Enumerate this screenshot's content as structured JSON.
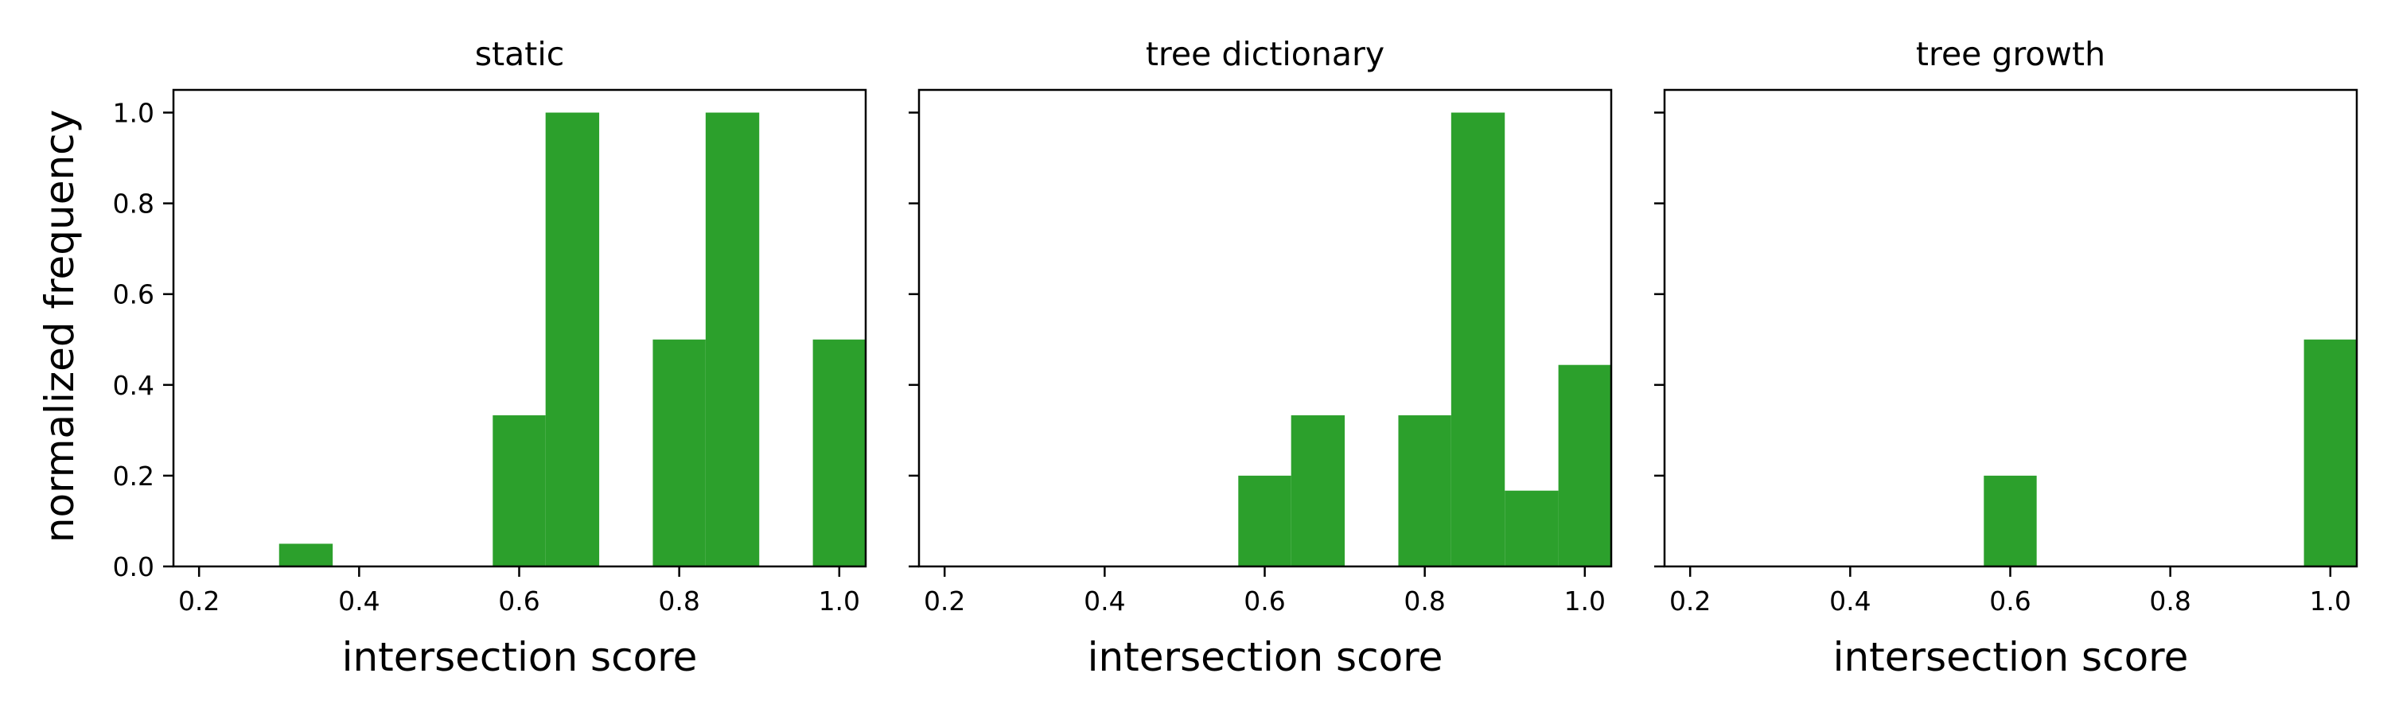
{
  "figure": {
    "ylabel": "normalized frequency",
    "bar_color": "#2ca02c",
    "x_ticks": [
      0.2,
      0.4,
      0.6,
      0.8,
      1.0
    ],
    "y_ticks": [
      0.0,
      0.2,
      0.4,
      0.6,
      0.8,
      1.0
    ],
    "x_tick_labels": [
      "0.2",
      "0.4",
      "0.6",
      "0.8",
      "1.0"
    ],
    "y_tick_labels": [
      "0.0",
      "0.2",
      "0.4",
      "0.6",
      "0.8",
      "1.0"
    ]
  },
  "chart_data": [
    {
      "type": "bar",
      "title": "static",
      "xlabel": "intersection score",
      "ylabel": "normalized frequency",
      "xlim": [
        0.168,
        1.033
      ],
      "ylim": [
        0,
        1.05
      ],
      "bin_width": 0.067,
      "bins": [
        {
          "x0": 0.3,
          "x1": 0.367,
          "value": 0.05
        },
        {
          "x0": 0.567,
          "x1": 0.633,
          "value": 0.333
        },
        {
          "x0": 0.633,
          "x1": 0.7,
          "value": 1.0
        },
        {
          "x0": 0.767,
          "x1": 0.833,
          "value": 0.5
        },
        {
          "x0": 0.833,
          "x1": 0.9,
          "value": 1.0
        },
        {
          "x0": 0.967,
          "x1": 1.033,
          "value": 0.5
        }
      ]
    },
    {
      "type": "bar",
      "title": "tree dictionary",
      "xlabel": "intersection score",
      "ylabel": "normalized frequency",
      "xlim": [
        0.168,
        1.033
      ],
      "ylim": [
        0,
        1.05
      ],
      "bin_width": 0.067,
      "bins": [
        {
          "x0": 0.567,
          "x1": 0.633,
          "value": 0.2
        },
        {
          "x0": 0.633,
          "x1": 0.7,
          "value": 0.333
        },
        {
          "x0": 0.767,
          "x1": 0.833,
          "value": 0.333
        },
        {
          "x0": 0.833,
          "x1": 0.9,
          "value": 1.0
        },
        {
          "x0": 0.9,
          "x1": 0.967,
          "value": 0.167
        },
        {
          "x0": 0.967,
          "x1": 1.033,
          "value": 0.444
        }
      ]
    },
    {
      "type": "bar",
      "title": "tree growth",
      "xlabel": "intersection score",
      "ylabel": "normalized frequency",
      "xlim": [
        0.168,
        1.033
      ],
      "ylim": [
        0,
        1.05
      ],
      "bin_width": 0.067,
      "bins": [
        {
          "x0": 0.567,
          "x1": 0.633,
          "value": 0.2
        },
        {
          "x0": 0.967,
          "x1": 1.033,
          "value": 0.5
        }
      ]
    }
  ]
}
